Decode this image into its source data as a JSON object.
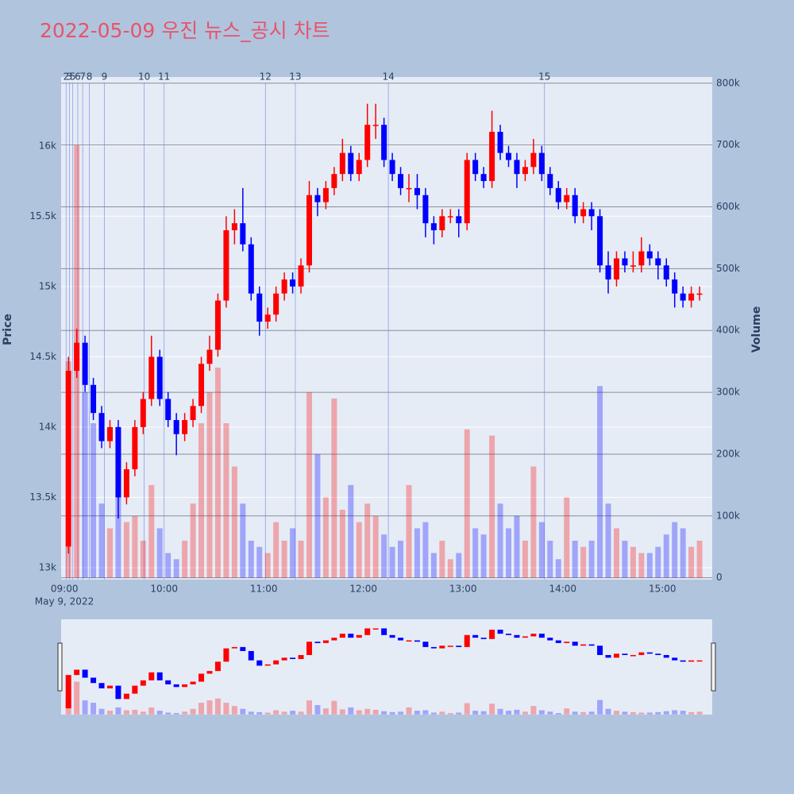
{
  "chart_data": {
    "type": "candlestick",
    "title": "2022-05-09 우진 뉴스_공시 차트",
    "y_title": "Price",
    "y2_title": "Volume",
    "x_date_label": "May 9, 2022",
    "increasing_color": "#ff0000",
    "decreasing_color": "#0000ff",
    "xlim": [
      "08:58",
      "15:30"
    ],
    "xticks": [
      "09:00",
      "10:00",
      "11:00",
      "12:00",
      "13:00",
      "14:00",
      "15:00"
    ],
    "ylim": [
      12915,
      16490
    ],
    "yticks": [
      {
        "value": 13000,
        "label": "13k"
      },
      {
        "value": 13500,
        "label": "13.5k"
      },
      {
        "value": 14000,
        "label": "14k"
      },
      {
        "value": 14500,
        "label": "14.5k"
      },
      {
        "value": 15000,
        "label": "15k"
      },
      {
        "value": 15500,
        "label": "15.5k"
      },
      {
        "value": 16000,
        "label": "16k"
      }
    ],
    "y2lim": [
      -3000,
      810000
    ],
    "y2ticks": [
      0,
      {
        "value": 100000,
        "label": "100k"
      },
      {
        "value": 200000,
        "label": "200k"
      },
      {
        "value": 300000,
        "label": "300k"
      },
      {
        "value": 400000,
        "label": "400k"
      },
      {
        "value": 500000,
        "label": "500k"
      },
      {
        "value": 600000,
        "label": "600k"
      },
      {
        "value": 700000,
        "label": "700k"
      },
      {
        "value": 800000,
        "label": "800k"
      }
    ],
    "news": {
      "x": [
        "09:01",
        "09:03",
        "09:05",
        "09:08",
        "09:11",
        "09:15",
        "09:24",
        "09:48",
        "10:00",
        "11:01",
        "11:19",
        "12:15",
        "13:49"
      ],
      "labels": [
        "2",
        "3",
        "5",
        "6",
        "7",
        "8",
        "9",
        "10",
        "11",
        "12",
        "13",
        "14",
        "15"
      ]
    },
    "x": [
      "09:00",
      "09:05",
      "09:10",
      "09:15",
      "09:20",
      "09:25",
      "09:30",
      "09:35",
      "09:40",
      "09:45",
      "09:50",
      "09:55",
      "10:00",
      "10:05",
      "10:10",
      "10:15",
      "10:20",
      "10:25",
      "10:30",
      "10:35",
      "10:40",
      "10:45",
      "10:50",
      "10:55",
      "11:00",
      "11:05",
      "11:10",
      "11:15",
      "11:20",
      "11:25",
      "11:30",
      "11:35",
      "11:40",
      "11:45",
      "11:50",
      "11:55",
      "12:00",
      "12:05",
      "12:10",
      "12:15",
      "12:20",
      "12:25",
      "12:30",
      "12:35",
      "12:40",
      "12:45",
      "12:50",
      "12:55",
      "13:00",
      "13:05",
      "13:10",
      "13:15",
      "13:20",
      "13:25",
      "13:30",
      "13:35",
      "13:40",
      "13:45",
      "13:50",
      "13:55",
      "14:00",
      "14:05",
      "14:10",
      "14:15",
      "14:20",
      "14:25",
      "14:30",
      "14:35",
      "14:40",
      "14:45",
      "14:50",
      "14:55",
      "15:00",
      "15:05",
      "15:10",
      "15:15",
      "15:20"
    ],
    "open": [
      13150,
      14400,
      14600,
      14300,
      14100,
      13900,
      14000,
      13500,
      13700,
      14000,
      14200,
      14500,
      14200,
      14050,
      13950,
      14050,
      14150,
      14450,
      14550,
      14900,
      15400,
      15450,
      15300,
      14950,
      14750,
      14800,
      14950,
      15050,
      15000,
      15150,
      15650,
      15600,
      15700,
      15800,
      15950,
      15800,
      15900,
      16150,
      16150,
      15900,
      15800,
      15700,
      15700,
      15650,
      15450,
      15400,
      15500,
      15500,
      15450,
      15900,
      15800,
      15750,
      16100,
      15950,
      15900,
      15800,
      15850,
      15950,
      15800,
      15700,
      15600,
      15650,
      15500,
      15550,
      15500,
      15150,
      15050,
      15200,
      15150,
      15150,
      15250,
      15200,
      15150,
      15050,
      14950,
      14900,
      14950
    ],
    "high": [
      14500,
      14700,
      14650,
      14350,
      14150,
      14050,
      14050,
      13750,
      14050,
      14250,
      14650,
      14550,
      14250,
      14100,
      14100,
      14200,
      14500,
      14650,
      14950,
      15500,
      15550,
      15700,
      15350,
      15000,
      14850,
      15000,
      15100,
      15100,
      15200,
      15750,
      15700,
      15750,
      15850,
      16050,
      16000,
      15950,
      16300,
      16300,
      16200,
      15950,
      15850,
      15800,
      15800,
      15700,
      15500,
      15550,
      15550,
      15550,
      15950,
      15950,
      15850,
      16250,
      16150,
      16000,
      15950,
      15900,
      16050,
      16000,
      15850,
      15750,
      15700,
      15700,
      15600,
      15600,
      15550,
      15250,
      15250,
      15250,
      15250,
      15350,
      15300,
      15250,
      15200,
      15100,
      15000,
      15000,
      15000
    ],
    "low": [
      13100,
      14350,
      14250,
      14050,
      13850,
      13850,
      13350,
      13450,
      13650,
      13950,
      14150,
      14150,
      14000,
      13800,
      13900,
      14000,
      14100,
      14400,
      14500,
      14850,
      15300,
      15250,
      14900,
      14650,
      14700,
      14750,
      14900,
      14950,
      14950,
      15100,
      15500,
      15550,
      15650,
      15750,
      15750,
      15750,
      15850,
      16050,
      15850,
      15750,
      15650,
      15600,
      15550,
      15350,
      15300,
      15350,
      15450,
      15350,
      15400,
      15750,
      15700,
      15700,
      15900,
      15850,
      15700,
      15750,
      15800,
      15750,
      15650,
      15550,
      15550,
      15450,
      15450,
      15400,
      15100,
      14950,
      15000,
      15100,
      15100,
      15100,
      15150,
      15050,
      15000,
      14850,
      14850,
      14850,
      14900
    ],
    "close": [
      14400,
      14600,
      14300,
      14100,
      13900,
      14000,
      13500,
      13700,
      14000,
      14200,
      14500,
      14200,
      14050,
      13950,
      14050,
      14150,
      14450,
      14550,
      14900,
      15400,
      15450,
      15300,
      14950,
      14750,
      14800,
      14950,
      15050,
      15000,
      15150,
      15650,
      15600,
      15700,
      15800,
      15950,
      15800,
      15900,
      16150,
      16150,
      15900,
      15800,
      15700,
      15700,
      15650,
      15450,
      15400,
      15500,
      15500,
      15450,
      15900,
      15800,
      15750,
      16100,
      15950,
      15900,
      15800,
      15850,
      15950,
      15800,
      15700,
      15600,
      15650,
      15500,
      15550,
      15500,
      15150,
      15050,
      15200,
      15150,
      15150,
      15250,
      15200,
      15150,
      15050,
      14950,
      14900,
      14950,
      14950
    ],
    "volume": [
      350000,
      700000,
      300000,
      250000,
      120000,
      80000,
      150000,
      90000,
      100000,
      60000,
      150000,
      80000,
      40000,
      30000,
      60000,
      120000,
      250000,
      300000,
      340000,
      250000,
      180000,
      120000,
      60000,
      50000,
      40000,
      90000,
      60000,
      80000,
      60000,
      300000,
      200000,
      130000,
      290000,
      110000,
      150000,
      90000,
      120000,
      100000,
      70000,
      50000,
      60000,
      150000,
      80000,
      90000,
      40000,
      60000,
      30000,
      40000,
      240000,
      80000,
      70000,
      230000,
      120000,
      80000,
      100000,
      60000,
      180000,
      90000,
      60000,
      30000,
      130000,
      60000,
      50000,
      60000,
      310000,
      120000,
      80000,
      60000,
      50000,
      40000,
      40000,
      50000,
      70000,
      90000,
      80000,
      50000,
      60000
    ]
  }
}
